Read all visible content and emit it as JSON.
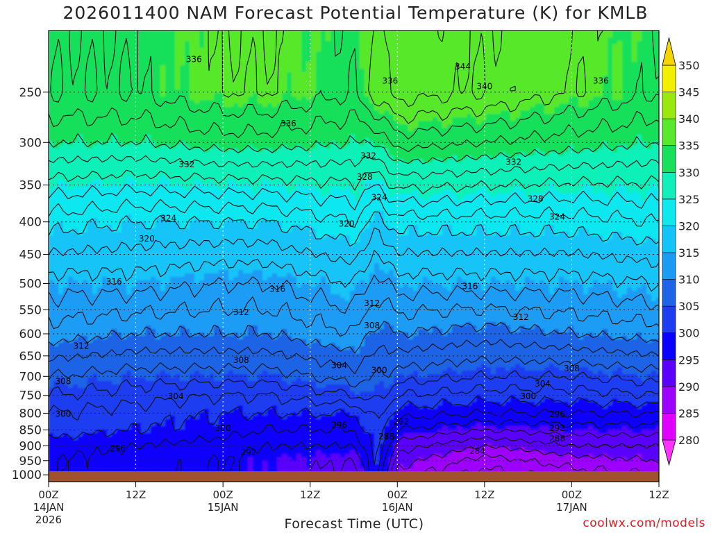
{
  "header": {
    "title": "2026011400 NAM Forecast Potential Temperature (K) for KMLB"
  },
  "footer": {
    "xlabel": "Forecast Time (UTC)",
    "credit": "coolwx.com/models"
  },
  "colors": {
    "ground": "#a0522d",
    "levels": [
      {
        "lo": 280,
        "hi": 285,
        "color": "#e100ff"
      },
      {
        "lo": 285,
        "hi": 290,
        "color": "#9d00ff"
      },
      {
        "lo": 290,
        "hi": 295,
        "color": "#5a00ff"
      },
      {
        "lo": 295,
        "hi": 300,
        "color": "#0a00ff"
      },
      {
        "lo": 300,
        "hi": 305,
        "color": "#1f3df0"
      },
      {
        "lo": 305,
        "hi": 310,
        "color": "#1e64e6"
      },
      {
        "lo": 310,
        "hi": 315,
        "color": "#1a9cf4"
      },
      {
        "lo": 315,
        "hi": 320,
        "color": "#12c4f8"
      },
      {
        "lo": 320,
        "hi": 325,
        "color": "#10e8f0"
      },
      {
        "lo": 325,
        "hi": 330,
        "color": "#10f0b8"
      },
      {
        "lo": 330,
        "hi": 335,
        "color": "#18e05a"
      },
      {
        "lo": 335,
        "hi": 340,
        "color": "#58e82c"
      },
      {
        "lo": 340,
        "hi": 345,
        "color": "#9ae80e"
      },
      {
        "lo": 345,
        "hi": 350,
        "color": "#f2f000"
      }
    ]
  },
  "chart_data": {
    "type": "heatmap",
    "title": "2026011400 NAM Forecast Potential Temperature (K) for KMLB",
    "xlabel": "Forecast Time (UTC)",
    "ylabel": "",
    "x_range_hours": [
      0,
      84
    ],
    "x_ticks": [
      {
        "hour": 0,
        "label": "00Z",
        "sub": "14JAN",
        "sub2": "2026"
      },
      {
        "hour": 12,
        "label": "12Z",
        "sub": "",
        "sub2": ""
      },
      {
        "hour": 24,
        "label": "00Z",
        "sub": "15JAN",
        "sub2": ""
      },
      {
        "hour": 36,
        "label": "12Z",
        "sub": "",
        "sub2": ""
      },
      {
        "hour": 48,
        "label": "00Z",
        "sub": "16JAN",
        "sub2": ""
      },
      {
        "hour": 60,
        "label": "12Z",
        "sub": "",
        "sub2": ""
      },
      {
        "hour": 72,
        "label": "00Z",
        "sub": "17JAN",
        "sub2": ""
      },
      {
        "hour": 84,
        "label": "12Z",
        "sub": "",
        "sub2": ""
      }
    ],
    "y_scale": "log-pressure",
    "y_range_hpa": [
      1025,
      200
    ],
    "y_ticks": [
      250,
      300,
      350,
      400,
      450,
      500,
      550,
      600,
      650,
      700,
      750,
      800,
      850,
      900,
      950,
      1000
    ],
    "colorbar_ticks": [
      280,
      285,
      290,
      295,
      300,
      305,
      310,
      315,
      320,
      325,
      330,
      335,
      340,
      345,
      350
    ],
    "contour_interval_k": 2,
    "time_hours": [
      0,
      12,
      24,
      30,
      42,
      45,
      48,
      60,
      72,
      84
    ],
    "pressure_levels_hpa": [
      1000,
      950,
      900,
      850,
      800,
      750,
      700,
      600,
      500,
      400,
      300,
      250
    ],
    "theta_k": [
      [
        298,
        297,
        296,
        295,
        293,
        299,
        289,
        285,
        287,
        288
      ],
      [
        298,
        297,
        296,
        295,
        294,
        300,
        291,
        287,
        289,
        290
      ],
      [
        299,
        298,
        297,
        296,
        296,
        301,
        293,
        290,
        292,
        292
      ],
      [
        301,
        300,
        299,
        298,
        298,
        302,
        296,
        294,
        295,
        295
      ],
      [
        302,
        301,
        300,
        300,
        300,
        303,
        299,
        298,
        298,
        298
      ],
      [
        304,
        303,
        302,
        302,
        304,
        305,
        302,
        301,
        301,
        302
      ],
      [
        306,
        305,
        305,
        305,
        307,
        306,
        305,
        304,
        304,
        305
      ],
      [
        311,
        310,
        310,
        310,
        312,
        309,
        310,
        309,
        310,
        311
      ],
      [
        315,
        315,
        314,
        314,
        316,
        313,
        315,
        315,
        315,
        316
      ],
      [
        321,
        320,
        320,
        320,
        322,
        319,
        321,
        321,
        321,
        322
      ],
      [
        330,
        330,
        331,
        331,
        330,
        330,
        333,
        332,
        331,
        330
      ],
      [
        334,
        334,
        336,
        336,
        334,
        337,
        339,
        338,
        336,
        334
      ]
    ],
    "contour_labels": [
      {
        "t": 20,
        "p": 222,
        "v": 336
      },
      {
        "t": 47,
        "p": 240,
        "v": 336
      },
      {
        "t": 57,
        "p": 228,
        "v": 344
      },
      {
        "t": 60,
        "p": 245,
        "v": 340
      },
      {
        "t": 76,
        "p": 240,
        "v": 336
      },
      {
        "t": 33,
        "p": 280,
        "v": 336
      },
      {
        "t": 19,
        "p": 325,
        "v": 332
      },
      {
        "t": 44,
        "p": 315,
        "v": 332
      },
      {
        "t": 64,
        "p": 322,
        "v": 332
      },
      {
        "t": 43.5,
        "p": 340,
        "v": 328
      },
      {
        "t": 67,
        "p": 368,
        "v": 328
      },
      {
        "t": 45.5,
        "p": 366,
        "v": 324
      },
      {
        "t": 16.5,
        "p": 395,
        "v": 324
      },
      {
        "t": 70,
        "p": 393,
        "v": 324
      },
      {
        "t": 41,
        "p": 403,
        "v": 320
      },
      {
        "t": 13.5,
        "p": 425,
        "v": 320
      },
      {
        "t": 9,
        "p": 497,
        "v": 316
      },
      {
        "t": 31.5,
        "p": 510,
        "v": 316
      },
      {
        "t": 58,
        "p": 505,
        "v": 316
      },
      {
        "t": 44.5,
        "p": 537,
        "v": 312
      },
      {
        "t": 26.5,
        "p": 555,
        "v": 312
      },
      {
        "t": 65,
        "p": 565,
        "v": 312
      },
      {
        "t": 4.5,
        "p": 627,
        "v": 312
      },
      {
        "t": 44.5,
        "p": 582,
        "v": 308
      },
      {
        "t": 26.5,
        "p": 660,
        "v": 308
      },
      {
        "t": 72,
        "p": 680,
        "v": 308
      },
      {
        "t": 40,
        "p": 673,
        "v": 304
      },
      {
        "t": 17.5,
        "p": 752,
        "v": 304
      },
      {
        "t": 68,
        "p": 719,
        "v": 304
      },
      {
        "t": 2,
        "p": 713,
        "v": 308
      },
      {
        "t": 45.5,
        "p": 685,
        "v": 300
      },
      {
        "t": 66,
        "p": 752,
        "v": 300
      },
      {
        "t": 2,
        "p": 802,
        "v": 300
      },
      {
        "t": 24,
        "p": 845,
        "v": 300
      },
      {
        "t": 40,
        "p": 835,
        "v": 296
      },
      {
        "t": 70,
        "p": 803,
        "v": 296
      },
      {
        "t": 9.5,
        "p": 910,
        "v": 296
      },
      {
        "t": 48.5,
        "p": 825,
        "v": 292
      },
      {
        "t": 70,
        "p": 845,
        "v": 292
      },
      {
        "t": 27.5,
        "p": 922,
        "v": 292
      },
      {
        "t": 70,
        "p": 877,
        "v": 288
      },
      {
        "t": 46.5,
        "p": 870,
        "v": 288
      },
      {
        "t": 59,
        "p": 918,
        "v": 284
      }
    ]
  }
}
